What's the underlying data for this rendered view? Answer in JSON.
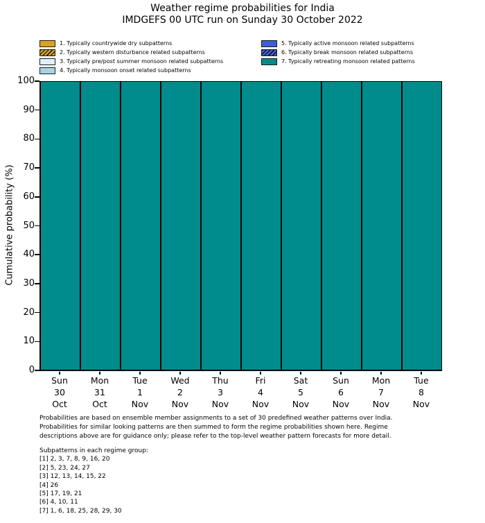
{
  "title": {
    "line1": "Weather regime probabilities for India",
    "line2": "IMDGEFS 00 UTC run on Sunday 30 October 2022"
  },
  "chart_data": {
    "type": "bar",
    "stacked": true,
    "title": "Weather regime probabilities for India",
    "subtitle": "IMDGEFS 00 UTC run on Sunday 30 October 2022",
    "xlabel": "",
    "ylabel": "Cumulative probability (%)",
    "ylim": [
      0,
      100
    ],
    "yticks": [
      0,
      10,
      20,
      30,
      40,
      50,
      60,
      70,
      80,
      90,
      100
    ],
    "grid": false,
    "legend_position": "top",
    "legend_columns": [
      4,
      3
    ],
    "bar_edge_color": "#000000",
    "categories": [
      {
        "day": "Sun",
        "date": "30",
        "month": "Oct"
      },
      {
        "day": "Mon",
        "date": "31",
        "month": "Oct"
      },
      {
        "day": "Tue",
        "date": "1",
        "month": "Nov"
      },
      {
        "day": "Wed",
        "date": "2",
        "month": "Nov"
      },
      {
        "day": "Thu",
        "date": "3",
        "month": "Nov"
      },
      {
        "day": "Fri",
        "date": "4",
        "month": "Nov"
      },
      {
        "day": "Sat",
        "date": "5",
        "month": "Nov"
      },
      {
        "day": "Sun",
        "date": "6",
        "month": "Nov"
      },
      {
        "day": "Mon",
        "date": "7",
        "month": "Nov"
      },
      {
        "day": "Tue",
        "date": "8",
        "month": "Nov"
      }
    ],
    "series": [
      {
        "name": "1. Typically countrywide dry subpatterns",
        "color": "#D9A41D",
        "hatch": false,
        "values": [
          0,
          0,
          0,
          0,
          0,
          0,
          0,
          0,
          0,
          0
        ]
      },
      {
        "name": "2. Typically western disturbance related subpatterns",
        "color": "#D9A41D",
        "hatch": true,
        "values": [
          0,
          0,
          0,
          0,
          0,
          0,
          0,
          0,
          0,
          0
        ]
      },
      {
        "name": "3. Typically pre/post summer monsoon related subpatterns",
        "color": "#E0F0F8",
        "hatch": false,
        "values": [
          0,
          0,
          0,
          0,
          0,
          0,
          0,
          0,
          0,
          0
        ]
      },
      {
        "name": "4. Typically monsoon onset related subpatterns",
        "color": "#A8D3E6",
        "hatch": false,
        "values": [
          0,
          0,
          0,
          0,
          0,
          0,
          0,
          0,
          0,
          0
        ]
      },
      {
        "name": "5. Typically active monsoon related subpatterns",
        "color": "#3E5FD6",
        "hatch": false,
        "values": [
          0,
          0,
          0,
          0,
          0,
          0,
          0,
          0,
          0,
          0
        ]
      },
      {
        "name": "6. Typically break monsoon related subpatterns",
        "color": "#3E5FD6",
        "hatch": true,
        "values": [
          0,
          0,
          0,
          0,
          0,
          0,
          0,
          0,
          0,
          0
        ]
      },
      {
        "name": "7. Typically retreating monsoon related patterns",
        "color": "#008C8C",
        "hatch": false,
        "values": [
          100,
          100,
          100,
          100,
          100,
          100,
          100,
          100,
          100,
          100
        ]
      }
    ]
  },
  "footnote": {
    "lines": [
      "Probabilities are based on ensemble member assignments to a set of 30 predefined weather patterns over India.",
      "Probabilities for similar looking patterns are then summed to form the regime probabilities shown here. Regime",
      "descriptions above are for guidance only; please refer to the top-level weather pattern forecasts for more detail."
    ]
  },
  "subpatterns": {
    "header": "Subpatterns in each regime group:",
    "lines": [
      "[1] 2, 3, 7, 8, 9, 16, 20",
      "[2] 5, 23, 24, 27",
      "[3] 12, 13, 14, 15, 22",
      "[4] 26",
      "[5] 17, 19, 21",
      "[6] 4, 10, 11",
      "[7] 1, 6, 18, 25, 28, 29, 30"
    ]
  }
}
